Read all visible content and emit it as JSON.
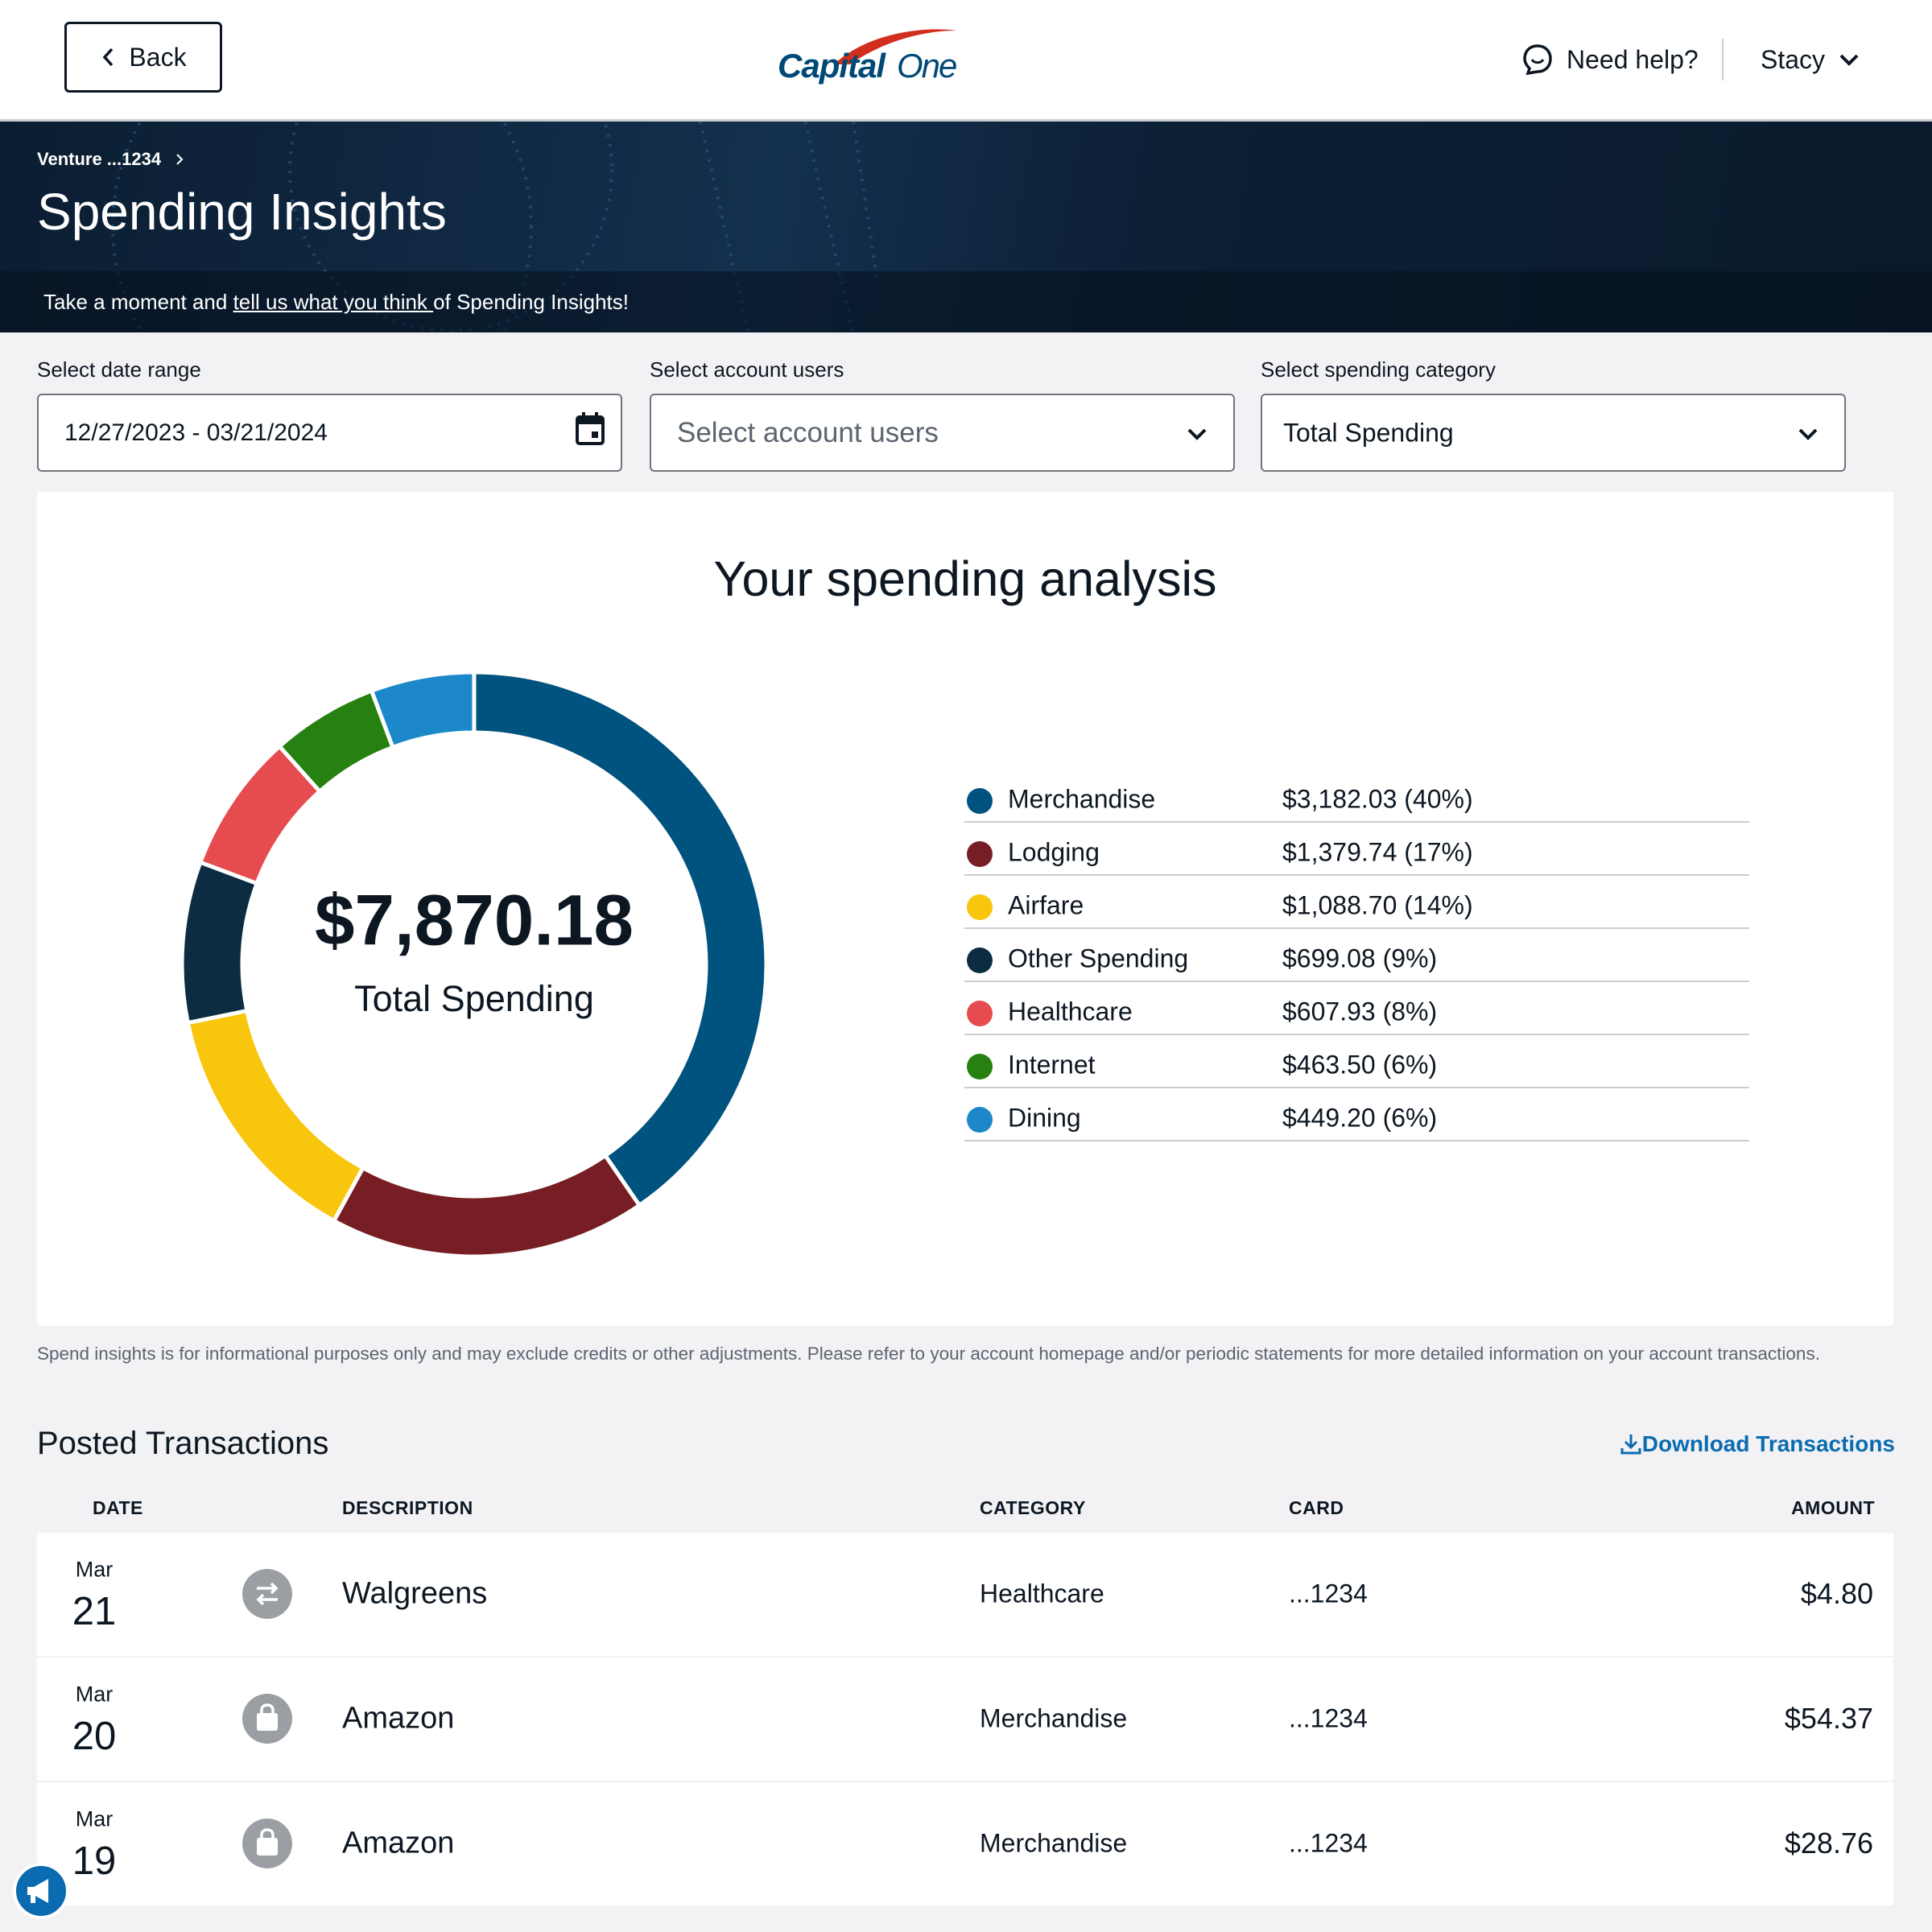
{
  "header": {
    "back": "Back",
    "logo_1": "Capital",
    "logo_2": "One",
    "help": "Need help?",
    "user": "Stacy"
  },
  "hero": {
    "breadcrumb": "Venture ...1234",
    "title": "Spending Insights",
    "feedback_pre": "Take a moment and ",
    "feedback_link": "tell us what you think ",
    "feedback_post": "of Spending Insights!"
  },
  "filters": [
    {
      "label": "Select date range",
      "value": "12/27/2023 - 03/21/2024"
    },
    {
      "label": "Select account users",
      "value": "Select account users"
    },
    {
      "label": "Select spending category",
      "value": "Total Spending"
    }
  ],
  "chart_data": {
    "type": "pie",
    "title": "Your spending analysis",
    "center_value": "$7,870.18",
    "center_label": "Total Spending",
    "categories": [
      "Merchandise",
      "Lodging",
      "Airfare",
      "Other Spending",
      "Healthcare",
      "Internet",
      "Dining"
    ],
    "values": [
      3182.03,
      1379.74,
      1088.7,
      699.08,
      607.93,
      463.5,
      449.2
    ],
    "value_labels": [
      "$3,182.03 (40%)",
      "$1,379.74 (17%)",
      "$1,088.70 (14%)",
      "$699.08 (9%)",
      "$607.93 (8%)",
      "$463.50 (6%)",
      "$449.20 (6%)"
    ],
    "colors": [
      "#00527f",
      "#761e23",
      "#f8c60c",
      "#0c2d41",
      "#e64c4f",
      "#268111",
      "#1c88c9"
    ]
  },
  "disclaimer": "Spend insights is for informational purposes only and may exclude credits or other adjustments. Please refer to your account homepage and/or periodic statements for more detailed information on your account transactions.",
  "transactions": {
    "title": "Posted Transactions",
    "download": "Download Transactions",
    "columns": [
      "DATE",
      "DESCRIPTION",
      "CATEGORY",
      "CARD",
      "AMOUNT"
    ],
    "rows": [
      {
        "month": "Mar",
        "day": "21",
        "description": "Walgreens",
        "category": "Healthcare",
        "card": "...1234",
        "amount": "$4.80"
      },
      {
        "month": "Mar",
        "day": "20",
        "description": "Amazon",
        "category": "Merchandise",
        "card": "...1234",
        "amount": "$54.37"
      },
      {
        "month": "Mar",
        "day": "19",
        "description": "Amazon",
        "category": "Merchandise",
        "card": "...1234",
        "amount": "$28.76"
      }
    ]
  }
}
